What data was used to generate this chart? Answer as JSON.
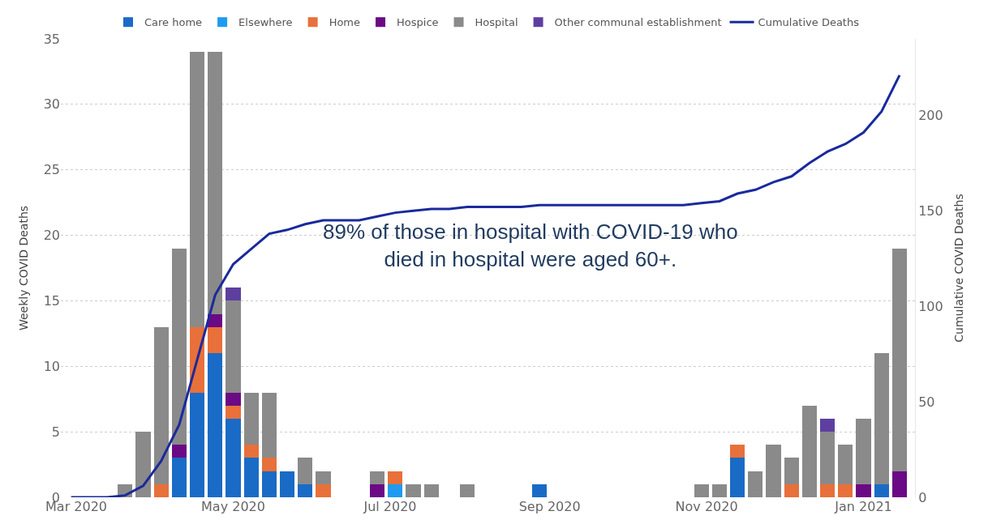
{
  "chart_data": {
    "type": "bar",
    "stacked": true,
    "x": [
      "2020-02-28",
      "2020-03-06",
      "2020-03-13",
      "2020-03-20",
      "2020-03-27",
      "2020-04-03",
      "2020-04-10",
      "2020-04-17",
      "2020-04-24",
      "2020-05-01",
      "2020-05-08",
      "2020-05-15",
      "2020-05-22",
      "2020-05-29",
      "2020-06-05",
      "2020-06-12",
      "2020-06-19",
      "2020-06-26",
      "2020-07-03",
      "2020-07-10",
      "2020-07-17",
      "2020-07-24",
      "2020-07-31",
      "2020-08-07",
      "2020-08-14",
      "2020-08-21",
      "2020-08-28",
      "2020-09-04",
      "2020-09-11",
      "2020-09-18",
      "2020-09-25",
      "2020-10-02",
      "2020-10-09",
      "2020-10-16",
      "2020-10-23",
      "2020-10-30",
      "2020-11-06",
      "2020-11-13",
      "2020-11-20",
      "2020-11-27",
      "2020-12-04",
      "2020-12-11",
      "2020-12-18",
      "2020-12-25",
      "2021-01-01",
      "2021-01-08",
      "2021-01-15"
    ],
    "series": [
      {
        "name": "Care home",
        "color": "#1a6bc6",
        "values": [
          null,
          null,
          null,
          null,
          null,
          null,
          3,
          8,
          11,
          6,
          3,
          2,
          2,
          1,
          null,
          null,
          null,
          null,
          null,
          null,
          null,
          null,
          null,
          null,
          null,
          null,
          1,
          null,
          null,
          null,
          null,
          null,
          null,
          null,
          null,
          null,
          null,
          3,
          null,
          null,
          null,
          null,
          null,
          null,
          null,
          1,
          null
        ]
      },
      {
        "name": "Elsewhere",
        "color": "#1e9bf0",
        "values": [
          null,
          null,
          null,
          null,
          null,
          null,
          null,
          null,
          null,
          null,
          null,
          null,
          null,
          null,
          null,
          null,
          null,
          null,
          1,
          null,
          null,
          null,
          null,
          null,
          null,
          null,
          null,
          null,
          null,
          null,
          null,
          null,
          null,
          null,
          null,
          null,
          null,
          null,
          null,
          null,
          null,
          null,
          null,
          null,
          null,
          null,
          null
        ]
      },
      {
        "name": "Home",
        "color": "#e8703a",
        "values": [
          null,
          null,
          null,
          null,
          null,
          1,
          null,
          5,
          2,
          1,
          1,
          1,
          null,
          null,
          1,
          null,
          null,
          null,
          1,
          null,
          null,
          null,
          null,
          null,
          null,
          null,
          null,
          null,
          null,
          null,
          null,
          null,
          null,
          null,
          null,
          null,
          null,
          1,
          null,
          null,
          1,
          null,
          1,
          1,
          null,
          null,
          null
        ]
      },
      {
        "name": "Hospice",
        "color": "#6b0a85",
        "values": [
          null,
          null,
          null,
          null,
          null,
          null,
          1,
          null,
          1,
          1,
          null,
          null,
          null,
          null,
          null,
          null,
          null,
          1,
          null,
          null,
          null,
          null,
          null,
          null,
          null,
          null,
          null,
          null,
          null,
          null,
          null,
          null,
          null,
          null,
          null,
          null,
          null,
          null,
          null,
          null,
          null,
          null,
          null,
          null,
          1,
          null,
          2
        ]
      },
      {
        "name": "Hospital",
        "color": "#8a8a8a",
        "values": [
          null,
          null,
          null,
          1,
          5,
          12,
          15,
          21,
          20,
          7,
          4,
          5,
          null,
          2,
          1,
          null,
          null,
          1,
          null,
          1,
          1,
          null,
          1,
          null,
          null,
          null,
          null,
          null,
          null,
          null,
          null,
          null,
          null,
          null,
          null,
          1,
          1,
          null,
          2,
          4,
          2,
          7,
          4,
          3,
          5,
          10,
          17
        ]
      },
      {
        "name": "Other communal establishment",
        "color": "#5e3fa0",
        "values": [
          null,
          null,
          null,
          null,
          null,
          null,
          null,
          null,
          null,
          1,
          null,
          null,
          null,
          null,
          null,
          null,
          null,
          null,
          null,
          null,
          null,
          null,
          null,
          null,
          null,
          null,
          null,
          null,
          null,
          null,
          null,
          null,
          null,
          null,
          null,
          null,
          null,
          null,
          null,
          null,
          null,
          null,
          1,
          null,
          null,
          null,
          null
        ]
      },
      {
        "name": "Cumulative Deaths",
        "type": "line",
        "axis": "y2",
        "color": "#1a2a9c",
        "values": [
          0,
          0,
          0,
          1,
          6,
          19,
          38,
          72,
          106,
          122,
          130,
          138,
          140,
          143,
          145,
          145,
          145,
          147,
          149,
          150,
          151,
          151,
          152,
          152,
          152,
          152,
          153,
          153,
          153,
          153,
          153,
          153,
          153,
          153,
          153,
          154,
          155,
          159,
          161,
          165,
          168,
          175,
          181,
          185,
          191,
          202,
          221
        ]
      }
    ],
    "ylabel": "Weekly COVID Deaths",
    "y2label": "Cumulative COVID Deaths",
    "xlim": [
      "2020-02-24",
      "2021-01-21"
    ],
    "xticks": [
      {
        "value": "2020-03-01",
        "label": "Mar 2020"
      },
      {
        "value": "2020-05-01",
        "label": "May 2020"
      },
      {
        "value": "2020-07-01",
        "label": "Jul 2020"
      },
      {
        "value": "2020-09-01",
        "label": "Sep 2020"
      },
      {
        "value": "2020-11-01",
        "label": "Nov 2020"
      },
      {
        "value": "2021-01-01",
        "label": "Jan 2021"
      }
    ],
    "ylim": [
      0,
      35
    ],
    "yticks": [
      0,
      5,
      10,
      15,
      20,
      25,
      30,
      35
    ],
    "y2lim": [
      0,
      240
    ],
    "y2ticks": [
      0,
      50,
      100,
      150,
      200
    ],
    "grid": "y",
    "legend": "top",
    "marker": "none",
    "line_style": "solid",
    "annotations": [
      "89% of those in hospital with COVID-19 who died in hospital were aged 60+."
    ]
  }
}
